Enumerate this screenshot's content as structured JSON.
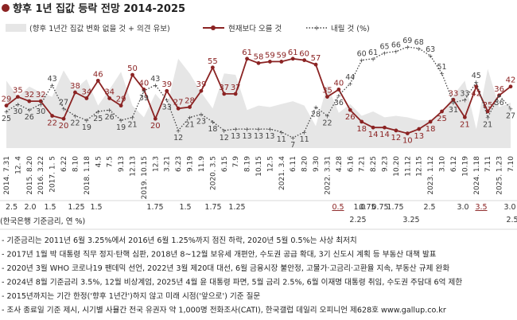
{
  "colors": {
    "up": "#8b2323",
    "down": "#444444",
    "band": "#e6e6e6",
    "rate_highlight": "#8b2323",
    "text": "#222222"
  },
  "chart_data": {
    "type": "line",
    "title": "향후 1년 집값 등락 전망 2014-2025",
    "legend": {
      "band": "(향후 1년간 집값 변화 없을 것 + 의견 유보)",
      "up": "현재보다 오를 것",
      "down": "내릴 것 (%)"
    },
    "x_labels": [
      "2014. 7.31",
      "12. 4",
      "2015. 8.20",
      "2016. 3.22",
      "2017. 1. 5",
      "6.22",
      "8.10",
      "2018. 1.18",
      "4.5",
      "7.5",
      "9.13",
      "12.13",
      "2019. 10.15",
      "12.3",
      "3.21",
      "6.23",
      "9.19",
      "11.9",
      "2020. 3.5",
      "6.15",
      "7.9",
      "8.19",
      "10.15",
      "12.5",
      "2021. 3.4",
      "6.11",
      "8.20",
      "9.30",
      "2022. 3.31",
      "4.28",
      "6.16",
      "7.21",
      "8.25",
      "9.23",
      "10.20",
      "11.12",
      "12.15",
      "2023. 1.12",
      "3.10",
      "6.12",
      "10.19",
      "2024. 1.18",
      "7.11",
      "2025. 1.23",
      "7.10"
    ],
    "series": [
      {
        "name": "현재보다 오를 것",
        "values": [
          29,
          35,
          32,
          32,
          22,
          20,
          38,
          34,
          46,
          34,
          29,
          50,
          40,
          20,
          39,
          27,
          28,
          39,
          55,
          37,
          37,
          61,
          58,
          59,
          59,
          61,
          60,
          57,
          35,
          40,
          26,
          18,
          14,
          14,
          12,
          10,
          13,
          18,
          25,
          33,
          21,
          42,
          25,
          36,
          42
        ],
        "labels": [
          "29",
          "35",
          "32",
          "32",
          "22",
          "20",
          "38",
          "34",
          "46",
          "34",
          "29",
          "50",
          "40",
          "20",
          "39",
          "27",
          "28",
          "39",
          "55",
          "37",
          "37",
          "61",
          "58",
          "59",
          "59",
          "61",
          "60",
          "57",
          "35",
          "40",
          "26",
          "18",
          "14",
          "14",
          "12",
          "10",
          "13",
          "18",
          "25",
          "33",
          "21",
          "42",
          "25",
          "36",
          "42"
        ]
      },
      {
        "name": "내릴 것",
        "values": [
          25,
          30,
          26,
          30,
          43,
          27,
          22,
          19,
          25,
          26,
          19,
          21,
          39,
          43,
          33,
          12,
          21,
          23,
          18,
          12,
          13,
          13,
          13,
          13,
          11,
          7,
          11,
          28,
          22,
          36,
          44,
          60,
          61,
          65,
          66,
          69,
          68,
          63,
          51,
          31,
          33,
          45,
          21,
          36,
          27
        ],
        "labels": [
          "25",
          "30",
          "26",
          "30",
          "43",
          "27",
          "22",
          "19",
          "25",
          "26",
          "19",
          "21",
          "39",
          "43",
          "33",
          "12",
          "21",
          "23",
          "18",
          "12",
          "13",
          "13",
          "13",
          "13",
          "11",
          "7",
          "11",
          "28",
          "22",
          "36",
          "44",
          "60",
          "61",
          "65",
          "66",
          "69",
          "68",
          "63",
          "51",
          "31",
          "33",
          "45",
          "21",
          "36",
          "27"
        ]
      }
    ],
    "ylim": [
      0,
      75
    ],
    "base_rate": {
      "label": "한국은행 기준금리, 연 %",
      "values": [
        "2.5",
        "2.0",
        "1.5",
        "1.25",
        "1.5",
        "1.75",
        "1.5",
        "1.75",
        "1.25",
        "0.5",
        "0.75",
        "1.0",
        "0.75",
        "1.75",
        "2.25",
        "2.5",
        "3.0",
        "3.25",
        "3.5",
        "3.0",
        "2.5"
      ],
      "highlighted": [
        "0.5",
        "3.5"
      ]
    }
  },
  "notes": [
    "- 기준금리는 2011년 6월 3.25%에서 2016년 6월 1.25%까지 점진 하락, 2020년 5월 0.5%는 사상 최저치",
    "- 2017년 1월 박 대통령 직무 정지·탄핵 심판, 2018년 8~12월 보유세 개편안, 수도권 공급 확대, 3기 신도시 계획 등 부동산 대책 발표",
    "- 2020년 3월 WHO 코로나19 팬데믹 선언, 2022년 3월 제20대 대선, 6월 금융시장 불안정, 고물가·고금리·고환율 지속, 부동산 규제 완화",
    "- 2024년 8월 기준금리 3.5%, 12월 비상계엄, 2025년 4월 윤 대통령 파면, 5월 금리 2.5%, 6월 이재명 대통령 취임, 수도권 주담대 6억 제한",
    "- 2015년까지는 기간 한정('향후 1년간')하지 않고 미래 시점('앞으로') 기준 질문",
    "- 조사 종료일 기준 제시, 시기별 사뮬간 전국 유권자 약 1,000명 전화조사(CATI), 한국갤럽 데일리 오피니언 제628호 www.gallup.co.kr"
  ]
}
